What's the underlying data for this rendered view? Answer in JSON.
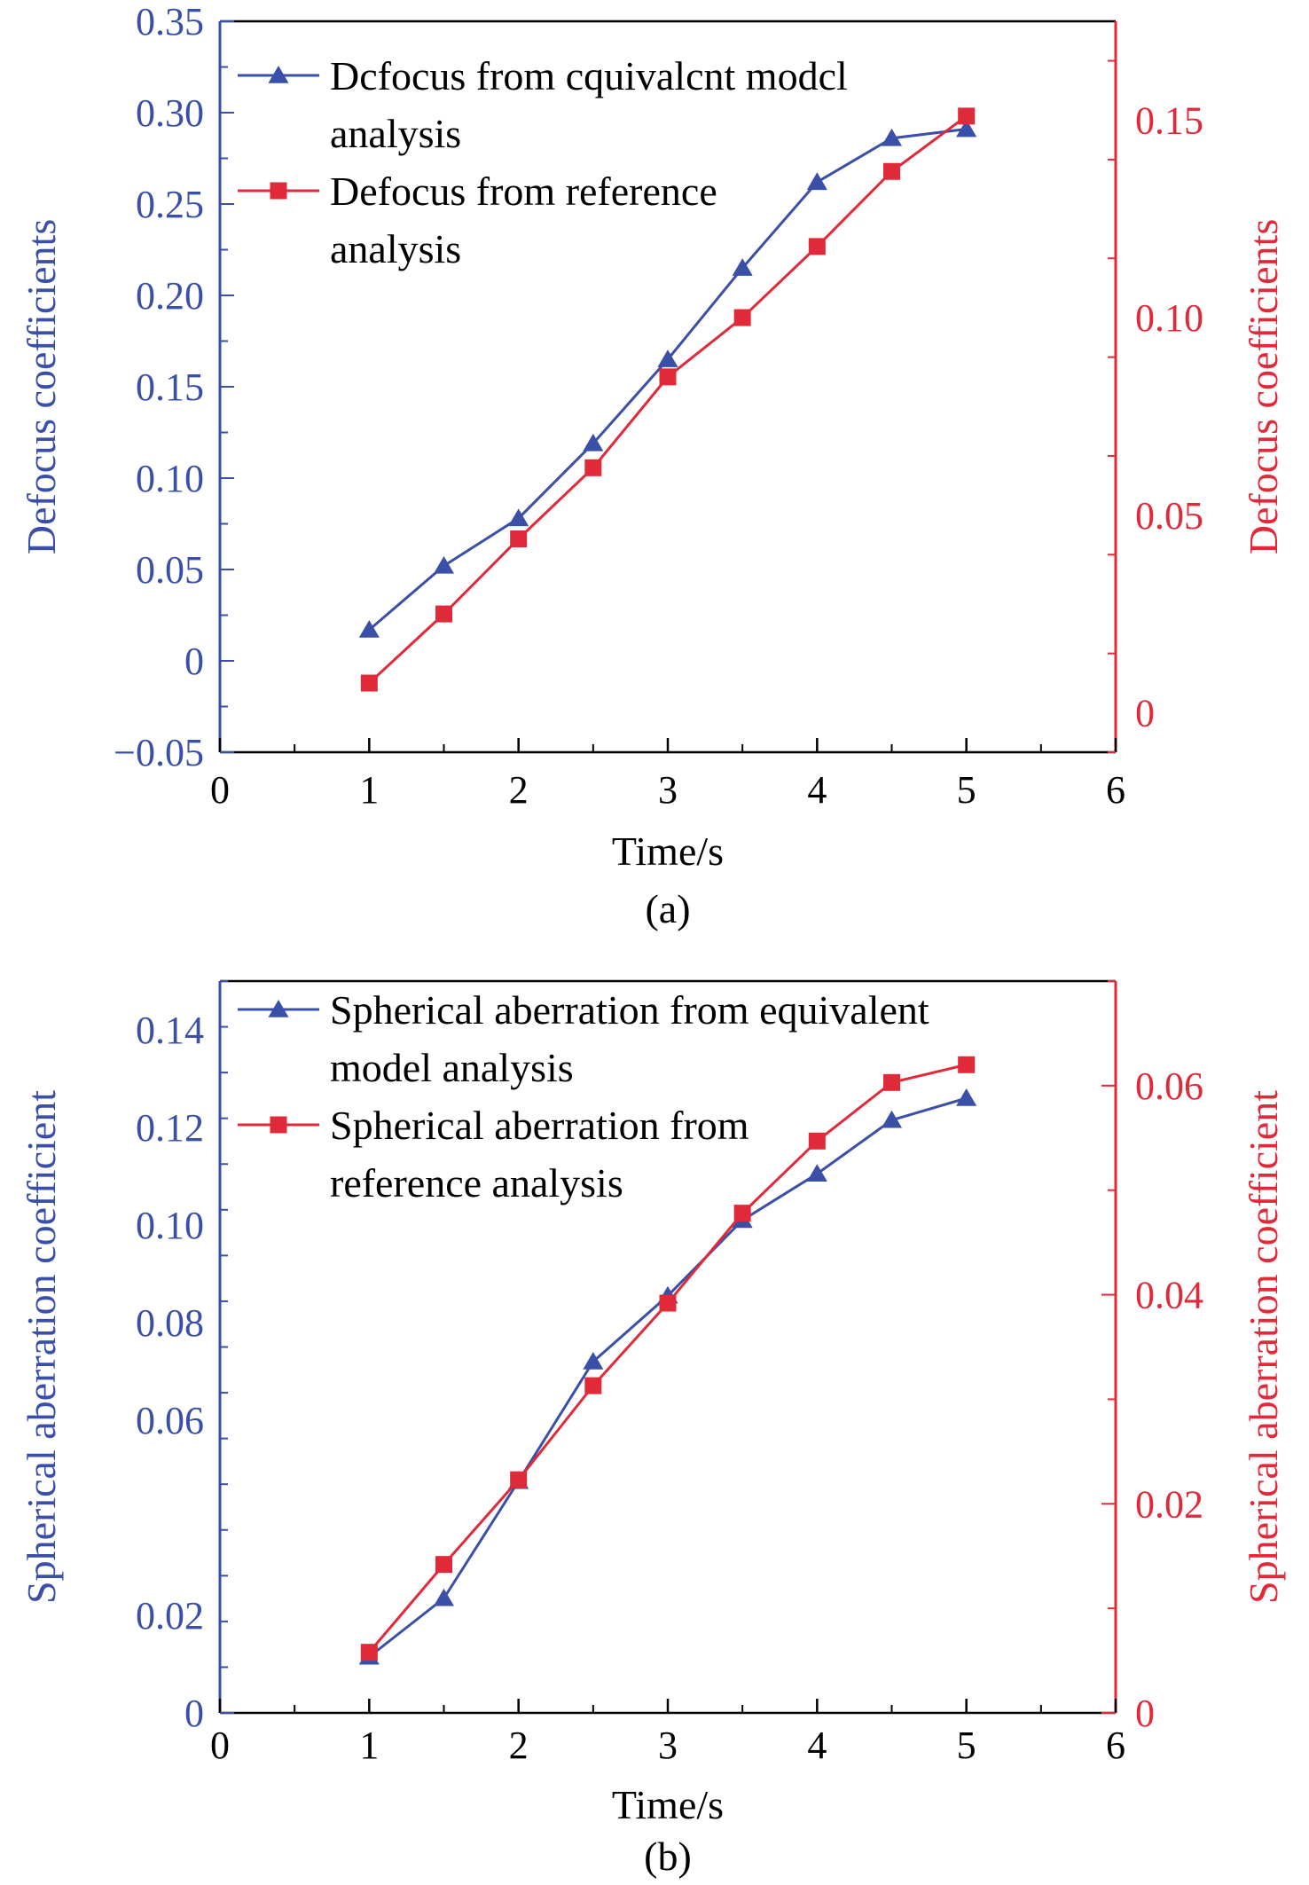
{
  "colors": {
    "blue": "#3a4fa8",
    "red": "#e02a3a",
    "axis": "#000000"
  },
  "chart_data": [
    {
      "type": "line",
      "caption": "(a)",
      "xlabel": "Time/s",
      "ylabel_left": "Defocus coefficients",
      "ylabel_right": "Defocus coefficients",
      "xlim": [
        0,
        6
      ],
      "xticks": [
        0,
        1,
        2,
        3,
        4,
        5,
        6
      ],
      "xtick_labels": [
        "0",
        "1",
        "2",
        "3",
        "4",
        "5",
        "6"
      ],
      "ylim_left": [
        -0.05,
        0.35
      ],
      "yticks_left": [
        -0.05,
        0,
        0.05,
        0.1,
        0.15,
        0.2,
        0.25,
        0.3,
        0.35
      ],
      "ytick_labels_left": [
        "−0.05",
        "0",
        "0.05",
        "0.10",
        "0.15",
        "0.20",
        "0.25",
        "0.30",
        "0.35"
      ],
      "ylim_right": [
        -0.01,
        0.175
      ],
      "yticks_right": [
        0,
        0.05,
        0.1,
        0.15
      ],
      "ytick_labels_right": [
        "0",
        "0.05",
        "0.10",
        "0.15"
      ],
      "legend_position": "top-left",
      "series": [
        {
          "name": "Dcfocus from cquivalcnt modcl analysis",
          "legend_lines": [
            "Dcfocus from cquivalcnt modcl",
            "analysis"
          ],
          "axis": "left",
          "color": "#3a4fa8",
          "marker": "triangle",
          "x": [
            1,
            1.5,
            2,
            2.5,
            3,
            3.5,
            4,
            4.5,
            5
          ],
          "y": [
            0.017,
            0.052,
            0.078,
            0.119,
            0.165,
            0.215,
            0.262,
            0.286,
            0.291
          ]
        },
        {
          "name": "Defocus from reference analysis",
          "legend_lines": [
            "Defocus from reference",
            "analysis"
          ],
          "axis": "right",
          "color": "#e02a3a",
          "marker": "square",
          "x": [
            1,
            1.5,
            2,
            2.5,
            3,
            3.5,
            4,
            4.5,
            5
          ],
          "y": [
            0.0075,
            0.025,
            0.044,
            0.062,
            0.085,
            0.1,
            0.118,
            0.137,
            0.151
          ]
        }
      ]
    },
    {
      "type": "line",
      "caption": "(b)",
      "xlabel": "Time/s",
      "ylabel_left": "Spherical aberration coefficient",
      "ylabel_right": "Spherical aberration coefficient",
      "xlim": [
        0,
        6
      ],
      "xticks": [
        0,
        1,
        2,
        3,
        4,
        5,
        6
      ],
      "xtick_labels": [
        "0",
        "1",
        "2",
        "3",
        "4",
        "5",
        "6"
      ],
      "ylim_left": [
        0,
        0.15
      ],
      "yticks_left": [
        0,
        0.02,
        0.06,
        0.08,
        0.1,
        0.12,
        0.14
      ],
      "ytick_labels_left": [
        "0",
        "0.02",
        "0.06",
        "0.08",
        "0.10",
        "0.12",
        "0.14"
      ],
      "ylim_right": [
        0,
        0.07
      ],
      "yticks_right": [
        0,
        0.02,
        0.04,
        0.06
      ],
      "ytick_labels_right": [
        "0",
        "0.02",
        "0.04",
        "0.06"
      ],
      "legend_position": "top-left",
      "series": [
        {
          "name": "Spherical aberration from equivalent model analysis",
          "legend_lines": [
            "Spherical aberration from equivalent",
            "model analysis"
          ],
          "axis": "left",
          "color": "#3a4fa8",
          "marker": "triangle",
          "x": [
            1,
            1.5,
            2,
            2.5,
            3,
            3.5,
            4,
            4.5,
            5
          ],
          "y": [
            0.0115,
            0.0235,
            0.0475,
            0.072,
            0.0855,
            0.101,
            0.1105,
            0.1215,
            0.126
          ]
        },
        {
          "name": "Spherical aberration from reference analysis",
          "legend_lines": [
            "Spherical aberration from",
            "reference analysis"
          ],
          "axis": "right",
          "color": "#e02a3a",
          "marker": "square",
          "x": [
            1,
            1.5,
            2,
            2.5,
            3,
            3.5,
            4,
            4.5,
            5
          ],
          "y": [
            0.0058,
            0.0142,
            0.0223,
            0.0313,
            0.0392,
            0.0478,
            0.0547,
            0.0603,
            0.062
          ]
        }
      ]
    }
  ]
}
